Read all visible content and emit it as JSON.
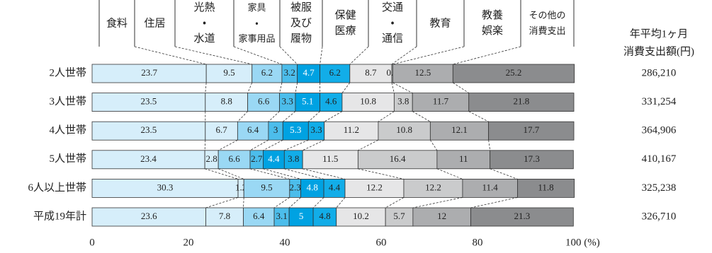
{
  "chart_data": {
    "type": "stacked_bar_h",
    "categories": [
      "2人世帯",
      "3人世帯",
      "4人世帯",
      "5人世帯",
      "6人以上世帯",
      "平成19年計"
    ],
    "series": [
      {
        "name": "食料",
        "color": "#d6eefa",
        "values": [
          23.7,
          23.5,
          23.5,
          23.4,
          30.3,
          23.6
        ]
      },
      {
        "name": "住居",
        "color": "#d6eefa",
        "values": [
          9.5,
          8.8,
          6.7,
          2.8,
          1.2,
          7.8
        ]
      },
      {
        "name": "光熱\n・\n水道",
        "color": "#9ad8f4",
        "values": [
          6.2,
          6.6,
          6.4,
          6.6,
          9.5,
          6.4
        ]
      },
      {
        "name": "家具\n・\n家事用品",
        "color": "#4cbdeb",
        "values": [
          3.2,
          3.3,
          3.0,
          2.7,
          2.3,
          3.1
        ]
      },
      {
        "name": "被服\n及び\n履物",
        "color": "#00a2e2",
        "values": [
          4.7,
          5.1,
          5.3,
          4.4,
          4.8,
          5.0
        ]
      },
      {
        "name": "保健\n医療",
        "color": "#12ade8",
        "values": [
          6.2,
          4.6,
          3.3,
          3.8,
          4.4,
          4.8
        ]
      },
      {
        "name": "交通\n・\n通信",
        "color": "#e6e6e7",
        "values": [
          8.7,
          10.8,
          11.2,
          11.5,
          12.2,
          10.2
        ]
      },
      {
        "name": "教育",
        "color": "#cacbcc",
        "values": [
          0.2,
          3.8,
          10.8,
          16.4,
          12.2,
          5.7
        ]
      },
      {
        "name": "教養\n娯楽",
        "color": "#acadaf",
        "values": [
          12.5,
          11.7,
          12.1,
          11.0,
          11.4,
          12.0
        ]
      },
      {
        "name": "その他の\n消費支出",
        "color": "#8b8c8e",
        "values": [
          25.2,
          21.8,
          17.7,
          17.3,
          11.8,
          21.3
        ]
      }
    ],
    "xlim": [
      0,
      100
    ],
    "xticks": [
      0,
      20,
      40,
      60,
      80,
      {
        "value": 100,
        "label": "100 (%)"
      }
    ],
    "total_column": {
      "title": "年平均1ヶ月\n消費支出額(円)",
      "values": [
        286210,
        331254,
        364906,
        410167,
        325238,
        326710
      ],
      "value_labels": [
        "286,210",
        "331,254",
        "364,906",
        "410,167",
        "325,238",
        "326,710"
      ]
    }
  }
}
